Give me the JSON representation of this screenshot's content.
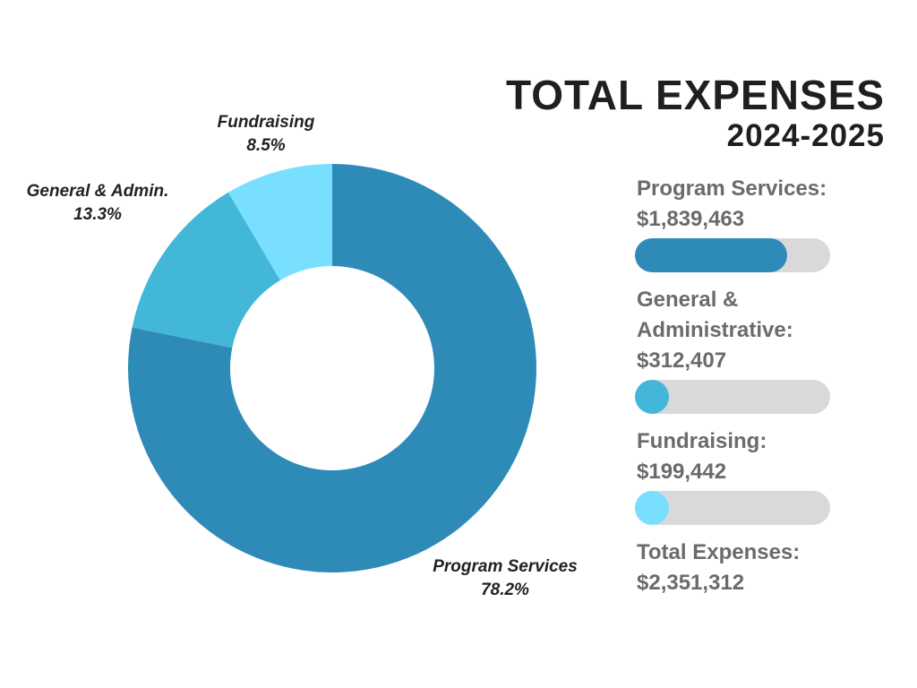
{
  "chart_data": {
    "type": "pie",
    "title": "TOTAL EXPENSES",
    "subtitle": "2024-2025",
    "slices": [
      {
        "name": "Program Services",
        "percent": 78.2,
        "value": 1839463,
        "color": "#2e8bb8"
      },
      {
        "name": "General & Admin.",
        "percent": 13.3,
        "value": 312407,
        "color": "#42b7d7"
      },
      {
        "name": "Fundraising",
        "percent": 8.5,
        "value": 199442,
        "color": "#79dfff"
      }
    ],
    "labels": [
      {
        "name": "Fundraising",
        "pct": "8.5%"
      },
      {
        "name": "General & Admin.",
        "pct": "13.3%"
      },
      {
        "name": "Program Services",
        "pct": "78.2%"
      }
    ]
  },
  "header": {
    "title": "TOTAL EXPENSES",
    "subtitle": "2024-2025"
  },
  "summary": {
    "items": [
      {
        "label": "Program Services:",
        "value": "$1,839,463",
        "fill": 0.782,
        "color": "#2e8bb8"
      },
      {
        "label": "General &\nAdministrative:",
        "value": "$312,407",
        "fill": 0.133,
        "color": "#42b7d7"
      },
      {
        "label": "Fundraising:",
        "value": "$199,442",
        "fill": 0.085,
        "color": "#79dfff"
      }
    ],
    "total_label": "Total Expenses:",
    "total_value": "$2,351,312",
    "track_color": "#d9d9d9",
    "text_color": "#6b6b6b"
  }
}
